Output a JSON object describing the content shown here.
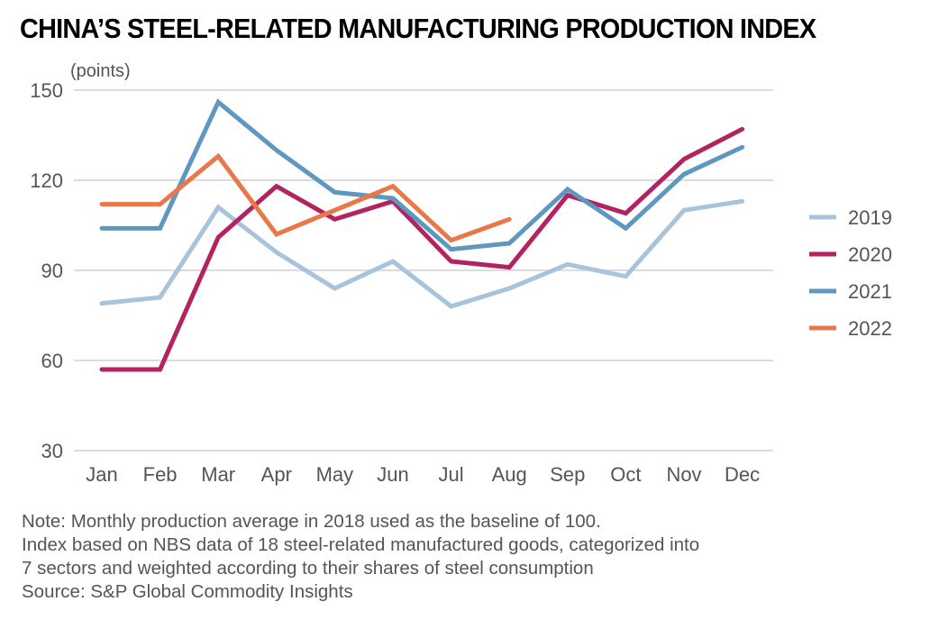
{
  "chart_data": {
    "type": "line",
    "title": "CHINA’S STEEL-RELATED MANUFACTURING PRODUCTION INDEX",
    "ylabel": "(points)",
    "xlabel": "",
    "categories": [
      "Jan",
      "Feb",
      "Mar",
      "Apr",
      "May",
      "Jun",
      "Jul",
      "Aug",
      "Sep",
      "Oct",
      "Nov",
      "Dec"
    ],
    "ylim": [
      30,
      150
    ],
    "yticks": [
      150,
      120,
      90,
      60,
      30
    ],
    "grid": true,
    "legend_position": "right",
    "series": [
      {
        "name": "2019",
        "color": "#a8c4dc",
        "values": [
          79,
          81,
          111,
          96,
          84,
          93,
          78,
          84,
          92,
          88,
          110,
          113
        ]
      },
      {
        "name": "2020",
        "color": "#b3235f",
        "values": [
          57,
          57,
          101,
          118,
          107,
          113,
          93,
          91,
          115,
          109,
          127,
          137
        ]
      },
      {
        "name": "2021",
        "color": "#5e98c0",
        "values": [
          104,
          104,
          146,
          130,
          116,
          114,
          97,
          99,
          117,
          104,
          122,
          131
        ]
      },
      {
        "name": "2022",
        "color": "#e8784a",
        "values": [
          112,
          112,
          128,
          102,
          110,
          118,
          100,
          107,
          null,
          null,
          null,
          null
        ]
      }
    ]
  },
  "notes": [
    "Note: Monthly production average in 2018 used as the baseline of 100.",
    "Index based on NBS data of 18 steel-related manufactured goods, categorized into",
    "7 sectors and weighted according to their shares of steel consumption",
    "Source: S&P Global Commodity Insights"
  ]
}
